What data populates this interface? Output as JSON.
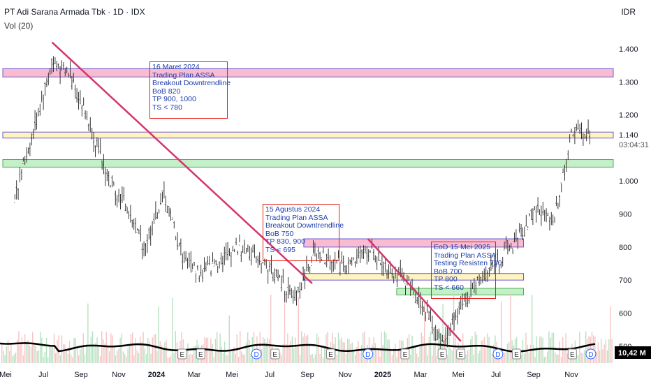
{
  "header": {
    "title": "PT Adi Sarana Armada Tbk · 1D · IDX",
    "indicator": "Vol (20)",
    "currency": "IDR"
  },
  "chart_data": {
    "type": "candlestick",
    "ylim": [
      460,
      1460
    ],
    "y_ticks": [
      {
        "value": 1400,
        "label": "1.400"
      },
      {
        "value": 1300,
        "label": "1.300"
      },
      {
        "value": 1200,
        "label": "1.200"
      },
      {
        "value": 1000,
        "label": "1.000"
      },
      {
        "value": 900,
        "label": "900"
      },
      {
        "value": 800,
        "label": "800"
      },
      {
        "value": 700,
        "label": "700"
      },
      {
        "value": 600,
        "label": "600"
      },
      {
        "value": 500,
        "label": "500"
      }
    ],
    "x_ticks": [
      "Mei",
      "Jul",
      "Sep",
      "Nov",
      "2024",
      "Mar",
      "Mei",
      "Jul",
      "Sep",
      "Nov",
      "2025",
      "Mar",
      "Mei",
      "Jul",
      "Sep",
      "Nov"
    ],
    "x_ticks_bold": [
      "2024",
      "2025"
    ],
    "price": [
      {
        "date": "2023-04",
        "value": 960
      },
      {
        "date": "2023-05",
        "value": 1150
      },
      {
        "date": "2023-06",
        "value": 1360
      },
      {
        "date": "2023-07",
        "value": 1320
      },
      {
        "date": "2023-08",
        "value": 1180
      },
      {
        "date": "2023-09",
        "value": 1010
      },
      {
        "date": "2023-10",
        "value": 920
      },
      {
        "date": "2023-11",
        "value": 800
      },
      {
        "date": "2023-12",
        "value": 960
      },
      {
        "date": "2024-01",
        "value": 780
      },
      {
        "date": "2024-02",
        "value": 720
      },
      {
        "date": "2024-03",
        "value": 760
      },
      {
        "date": "2024-04",
        "value": 800
      },
      {
        "date": "2024-05",
        "value": 780
      },
      {
        "date": "2024-06",
        "value": 720
      },
      {
        "date": "2024-07",
        "value": 640
      },
      {
        "date": "2024-08",
        "value": 770
      },
      {
        "date": "2024-09",
        "value": 760
      },
      {
        "date": "2024-10",
        "value": 740
      },
      {
        "date": "2024-11",
        "value": 790
      },
      {
        "date": "2024-12",
        "value": 740
      },
      {
        "date": "2025-01",
        "value": 700
      },
      {
        "date": "2025-02",
        "value": 620
      },
      {
        "date": "2025-03",
        "value": 510
      },
      {
        "date": "2025-04",
        "value": 620
      },
      {
        "date": "2025-05",
        "value": 700
      },
      {
        "date": "2025-06",
        "value": 760
      },
      {
        "date": "2025-07",
        "value": 820
      },
      {
        "date": "2025-08",
        "value": 910
      },
      {
        "date": "2025-09",
        "value": 880
      },
      {
        "date": "2025-10",
        "value": 1150
      },
      {
        "date": "2025-11",
        "value": 1140
      }
    ],
    "last_price": {
      "label": "1.140",
      "value": 1140,
      "countdown": "03:04:31"
    },
    "volume_label": "10,42 M",
    "trendlines": [
      {
        "from": {
          "date": "2023-06",
          "value": 1420
        },
        "to": {
          "date": "2024-08",
          "value": 690
        },
        "color": "#d6336c"
      },
      {
        "from": {
          "date": "2024-11",
          "value": 825
        },
        "to": {
          "date": "2025-04",
          "value": 515
        },
        "color": "#d6336c"
      }
    ],
    "zones": [
      {
        "name": "resistance",
        "from_date": "2023-04",
        "to_date": "2025-12",
        "low": 1315,
        "high": 1340,
        "color": "#f8bbd0",
        "border": "#6b5bd2"
      },
      {
        "name": "breakout",
        "from_date": "2023-04",
        "to_date": "2025-12",
        "low": 1130,
        "high": 1148,
        "color": "#fff3bf",
        "border": "#6b5bd2"
      },
      {
        "name": "support",
        "from_date": "2023-04",
        "to_date": "2025-12",
        "low": 1042,
        "high": 1065,
        "color": "#c3f0c8",
        "border": "#4caf50"
      },
      {
        "name": "tp-2024",
        "from_date": "2024-08",
        "to_date": "2025-07",
        "low": 800,
        "high": 825,
        "color": "#f8bbd0",
        "border": "#6b5bd2"
      },
      {
        "name": "bob-2024",
        "from_date": "2024-08",
        "to_date": "2025-07",
        "low": 700,
        "high": 720,
        "color": "#fff3bf",
        "border": "#6b5bd2"
      },
      {
        "name": "ts-2025",
        "from_date": "2025-01",
        "to_date": "2025-07",
        "low": 655,
        "high": 675,
        "color": "#c3f0c8",
        "border": "#4caf50"
      }
    ],
    "events": [
      {
        "date": "2024-01",
        "label": "E"
      },
      {
        "date": "2024-02",
        "label": "E"
      },
      {
        "date": "2024-05",
        "label": "D"
      },
      {
        "date": "2024-06",
        "label": "E"
      },
      {
        "date": "2024-09",
        "label": "E"
      },
      {
        "date": "2024-11",
        "label": "D"
      },
      {
        "date": "2025-01",
        "label": "E"
      },
      {
        "date": "2025-03",
        "label": "E"
      },
      {
        "date": "2025-04",
        "label": "E"
      },
      {
        "date": "2025-06",
        "label": "D"
      },
      {
        "date": "2025-07",
        "label": "E"
      },
      {
        "date": "2025-10",
        "label": "E"
      },
      {
        "date": "2025-11",
        "label": "D"
      }
    ]
  },
  "annotations": [
    {
      "lines": [
        "16 Maret 2024",
        "Trading Plan ASSA",
        "Breakout Downtrendline",
        "BoB 820",
        "TP 900, 1000",
        "TS < 780"
      ]
    },
    {
      "lines": [
        "15 Agustus 2024",
        "Trading Plan ASSA",
        "Breakout Downtrendline",
        "BoB 750",
        "TP 830, 900",
        "TS < 695"
      ]
    },
    {
      "lines": [
        "EoD 15 Mei 2025",
        "Trading Plan ASSA",
        "Testing Resisten 700",
        "BoB 700",
        "TP 800",
        "TS < 660"
      ]
    }
  ]
}
